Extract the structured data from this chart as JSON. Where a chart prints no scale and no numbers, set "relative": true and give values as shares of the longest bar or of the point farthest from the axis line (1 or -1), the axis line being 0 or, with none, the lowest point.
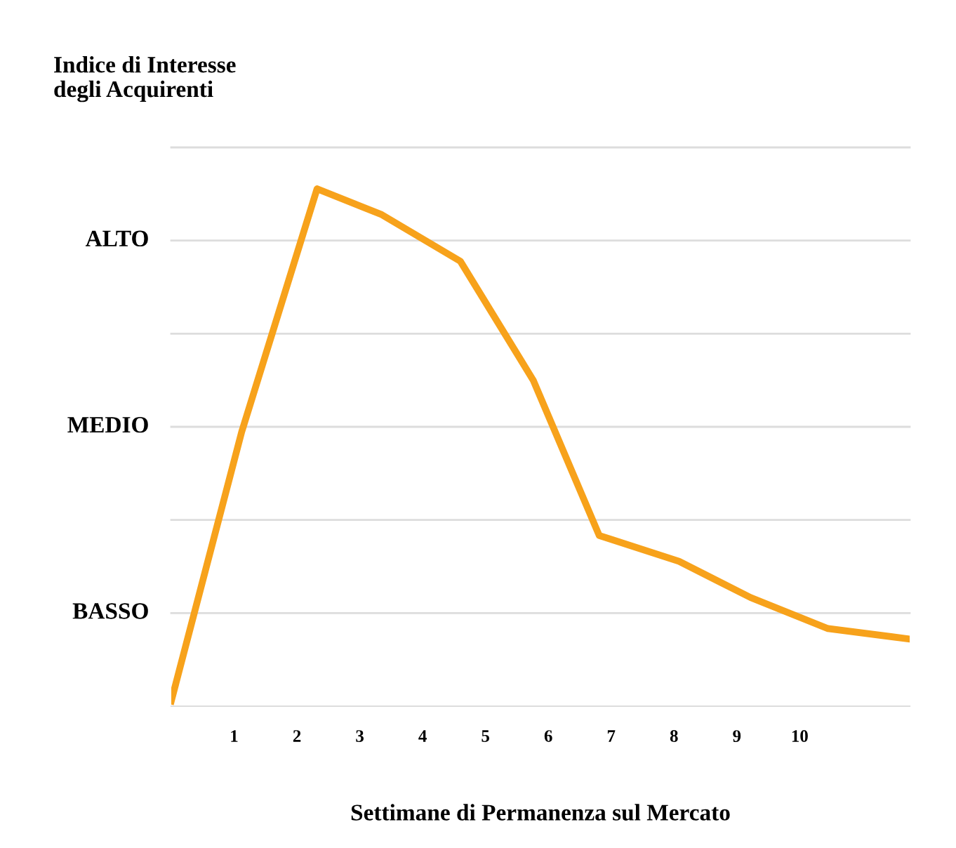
{
  "chart_data": {
    "type": "line",
    "relative": true,
    "ylabel": "Indice di Interesse\ndegli Acquirenti",
    "xlabel": "Settimane di Permanenza sul Mercato",
    "x": [
      0,
      1.12,
      2.32,
      3.35,
      4.6,
      5.76,
      6.81,
      8.08,
      9.22,
      10.45,
      11.74
    ],
    "series": [
      {
        "color": "#f7a21b",
        "values": [
          0.01,
          0.53,
          1,
          0.95,
          0.86,
          0.63,
          0.33,
          0.28,
          0.21,
          0.15,
          0.13
        ]
      }
    ],
    "xlim": [
      0,
      11.75
    ],
    "xticks": [
      1,
      2,
      3,
      4,
      5,
      6,
      7,
      8,
      9,
      10
    ],
    "ref_lines": [
      {
        "axis": "y",
        "value": 0.18,
        "label": "BASSO",
        "color": "#dddddd"
      },
      {
        "axis": "y",
        "value": 0.36,
        "label": null,
        "color": "#dddddd"
      },
      {
        "axis": "y",
        "value": 0.54,
        "label": "MEDIO",
        "color": "#dddddd"
      },
      {
        "axis": "y",
        "value": 0.72,
        "label": null,
        "color": "#dddddd"
      },
      {
        "axis": "y",
        "value": 0.9,
        "label": "ALTO",
        "color": "#dddddd"
      },
      {
        "axis": "y",
        "value": 1.08,
        "label": null,
        "color": "#dddddd"
      }
    ],
    "marker": "none",
    "line_style": "solid",
    "legend": false
  }
}
